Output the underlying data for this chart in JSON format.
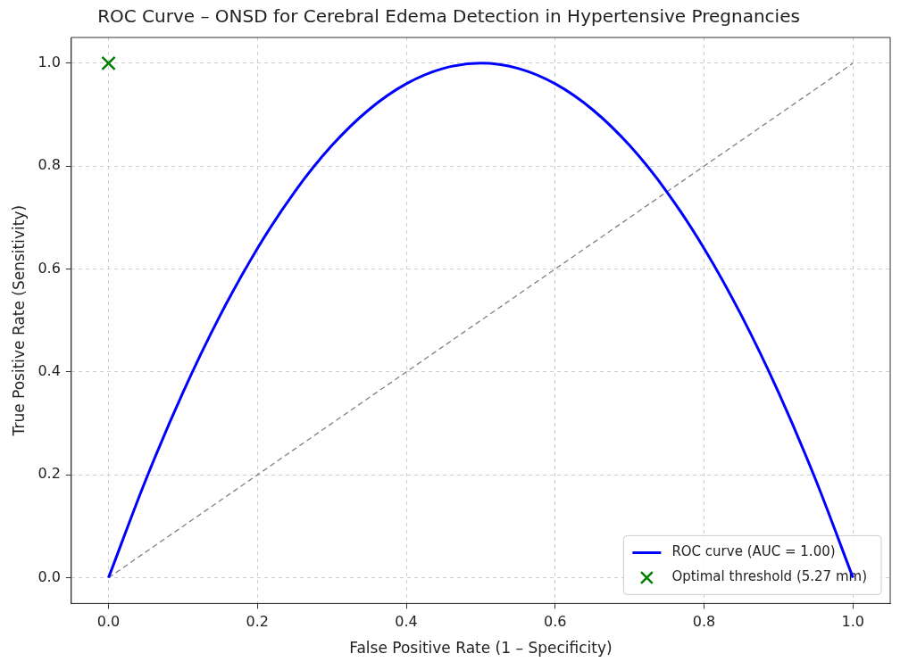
{
  "chart_data": {
    "type": "line",
    "title": "ROC Curve – ONSD for Cerebral Edema Detection in Hypertensive Pregnancies",
    "xlabel": "False Positive Rate (1 – Specificity)",
    "ylabel": "True Positive Rate (Sensitivity)",
    "xlim": [
      -0.05,
      1.05
    ],
    "ylim": [
      -0.05,
      1.05
    ],
    "xticks": [
      {
        "value": 0,
        "label": "0.0"
      },
      {
        "value": 0.2,
        "label": "0.2"
      },
      {
        "value": 0.4,
        "label": "0.4"
      },
      {
        "value": 0.6,
        "label": "0.6"
      },
      {
        "value": 0.8,
        "label": "0.8"
      },
      {
        "value": 1,
        "label": "1.0"
      }
    ],
    "yticks": [
      {
        "value": 0,
        "label": "0.0"
      },
      {
        "value": 0.2,
        "label": "0.2"
      },
      {
        "value": 0.4,
        "label": "0.4"
      },
      {
        "value": 0.6,
        "label": "0.6"
      },
      {
        "value": 0.8,
        "label": "0.8"
      },
      {
        "value": 1,
        "label": "1.0"
      }
    ],
    "grid": true,
    "legend": "bottom right",
    "series": [
      {
        "name": "ROC curve (AUC = 1.00)",
        "color": "#0000ff",
        "line_style": "solid",
        "marker": "none",
        "x": [
          0,
          0.05,
          0.1,
          0.15,
          0.2,
          0.25,
          0.3,
          0.35,
          0.4,
          0.45,
          0.5,
          0.55,
          0.6,
          0.65,
          0.7,
          0.75,
          0.8,
          0.85,
          0.9,
          0.95,
          1
        ],
        "values": [
          0,
          0.19,
          0.36,
          0.51,
          0.64,
          0.75,
          0.84,
          0.91,
          0.96,
          0.99,
          1,
          0.99,
          0.96,
          0.91,
          0.84,
          0.75,
          0.64,
          0.51,
          0.36,
          0.19,
          0
        ]
      },
      {
        "color": "#808080",
        "line_style": "dashed",
        "marker": "none",
        "x": [
          0,
          1
        ],
        "values": [
          0,
          1
        ]
      },
      {
        "name": "Optimal threshold (5.27 mm)",
        "type": "scatter",
        "color": "#008000",
        "marker": "cross",
        "x": [
          0
        ],
        "values": [
          1
        ]
      }
    ]
  }
}
